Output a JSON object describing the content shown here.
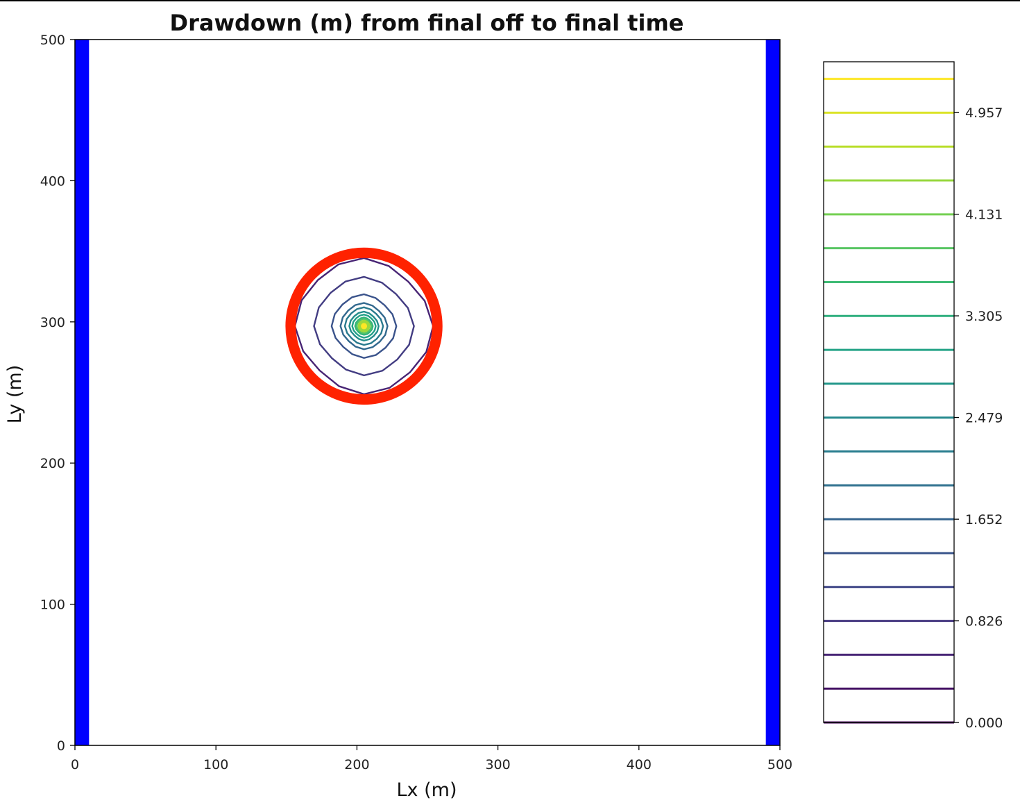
{
  "chart_data": {
    "type": "contour",
    "title": "Drawdown (m) from final off to final time",
    "xlabel": "Lx (m)",
    "ylabel": "Ly (m)",
    "xlim": [
      0,
      500
    ],
    "ylim": [
      0,
      500
    ],
    "x_ticks": [
      "0",
      "100",
      "200",
      "300",
      "400",
      "500"
    ],
    "y_ticks": [
      "0",
      "100",
      "200",
      "300",
      "400",
      "500"
    ],
    "grid": false,
    "boundary_strips": [
      {
        "x_range": [
          0,
          10
        ],
        "color": "#0000ff"
      },
      {
        "x_range": [
          490,
          500
        ],
        "color": "#0000ff"
      }
    ],
    "well_center": [
      205,
      297
    ],
    "contour_radii": [
      47,
      34,
      22,
      16,
      13,
      10,
      8,
      6,
      5,
      3
    ],
    "highlight_circle": {
      "center": [
        205,
        297
      ],
      "radius": 52,
      "color": "#ff2200"
    },
    "colorbar": {
      "min": 0.0,
      "max": 5.37,
      "levels": 20,
      "tick_values": [
        0.0,
        0.826,
        1.652,
        2.479,
        3.305,
        4.131,
        4.957
      ],
      "tick_labels": [
        "0.000",
        "0.826",
        "1.652",
        "2.479",
        "3.305",
        "4.131",
        "4.957"
      ],
      "colormap": "viridis"
    }
  }
}
